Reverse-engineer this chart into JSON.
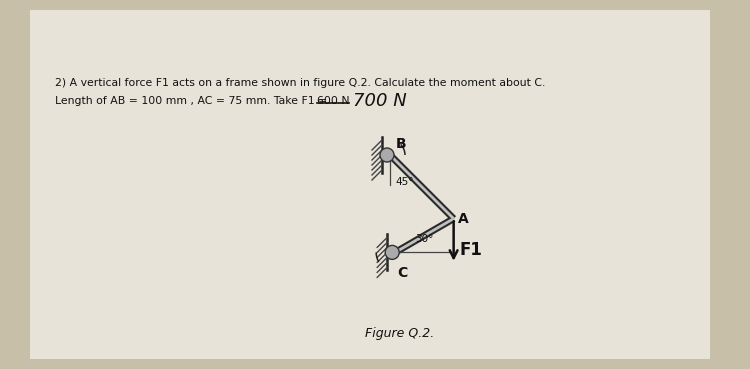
{
  "title_line1": "2) A vertical force F1 acts on a frame shown in figure Q.2. Calculate the moment about C.",
  "title_line2_plain": "Length of AB = 100 mm , AC = 75 mm. Take F1 = ",
  "title_line2_strike": "600 N",
  "title_line2_hand": "700 N",
  "figure_caption": "Figure Q.2.",
  "bg_color": "#c8bfa8",
  "paper_color": "#e8e3d8",
  "line_color": "#1a1a1a",
  "label_fontsize": 9,
  "caption_fontsize": 9
}
